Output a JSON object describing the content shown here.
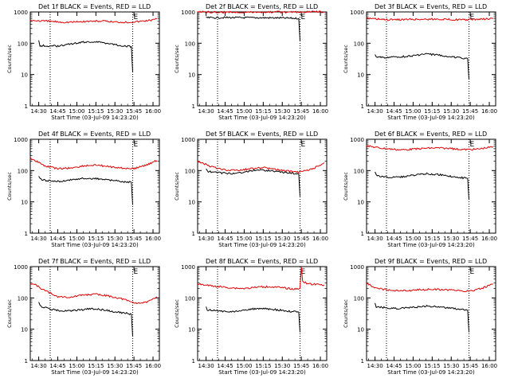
{
  "colors": {
    "events": "#000000",
    "lld": "#e00000",
    "axis": "#000000",
    "background": "#ffffff"
  },
  "chart_data": [
    {
      "type": "line",
      "title": "Det 1f BLACK = Events, RED = LLD",
      "xlabel": "Start Time (03-Jul-09 14:23:20)",
      "ylabel": "Counts/sec",
      "yscale": "log",
      "ylim": [
        1,
        1000
      ],
      "xlim": [
        "14:23:20",
        "16:05:00"
      ],
      "x_ticks": [
        "14:30",
        "14:45",
        "15:00",
        "15:15",
        "15:30",
        "15:45",
        "16:00"
      ],
      "y_ticks": [
        "1",
        "10",
        "100",
        "1000"
      ],
      "markers": [
        {
          "time": "14:39",
          "label": ""
        },
        {
          "time": "15:44",
          "label": "E"
        }
      ],
      "series": [
        {
          "color": "#000000",
          "x": [
            "14:30",
            "14:31",
            "14:33",
            "14:38",
            "14:45",
            "14:55",
            "15:05",
            "15:15",
            "15:25",
            "15:35",
            "15:43",
            "15:44"
          ],
          "values": [
            120,
            80,
            85,
            80,
            82,
            95,
            108,
            112,
            100,
            84,
            78,
            12
          ]
        },
        {
          "color": "#e00000",
          "x": [
            "14:23",
            "14:30",
            "14:40",
            "14:50",
            "15:00",
            "15:10",
            "15:20",
            "15:30",
            "15:40",
            "15:50",
            "16:00",
            "16:03"
          ],
          "values": [
            540,
            520,
            500,
            470,
            480,
            505,
            510,
            480,
            470,
            500,
            560,
            600
          ]
        }
      ]
    },
    {
      "type": "line",
      "title": "Det 2f BLACK = Events, RED = LLD",
      "xlabel": "Start Time (03-Jul-09 14:23:20)",
      "ylabel": "Counts/sec",
      "yscale": "log",
      "ylim": [
        1,
        1000
      ],
      "xlim": [
        "14:23:20",
        "16:05:00"
      ],
      "x_ticks": [
        "14:30",
        "14:45",
        "15:00",
        "15:15",
        "15:30",
        "15:45",
        "16:00"
      ],
      "y_ticks": [
        "1",
        "10",
        "100",
        "1000"
      ],
      "markers": [
        {
          "time": "14:39",
          "label": ""
        },
        {
          "time": "15:44",
          "label": "E"
        }
      ],
      "series": [
        {
          "color": "#000000",
          "x": [
            "14:30",
            "14:31",
            "14:45",
            "15:00",
            "15:15",
            "15:30",
            "15:43",
            "15:44"
          ],
          "values": [
            700,
            650,
            660,
            655,
            650,
            640,
            620,
            120
          ]
        },
        {
          "color": "#e00000",
          "x": [
            "14:23",
            "14:40",
            "15:00",
            "15:20",
            "15:40",
            "16:03"
          ],
          "values": [
            1000,
            980,
            990,
            1000,
            980,
            1020
          ]
        }
      ]
    },
    {
      "type": "line",
      "title": "Det 3f BLACK = Events, RED = LLD",
      "xlabel": "Start Time (03-Jul-09 14:23:20)",
      "ylabel": "Counts/sec",
      "yscale": "log",
      "ylim": [
        1,
        1000
      ],
      "xlim": [
        "14:23:20",
        "16:05:00"
      ],
      "x_ticks": [
        "14:30",
        "14:45",
        "15:00",
        "15:15",
        "15:30",
        "15:45",
        "16:00"
      ],
      "y_ticks": [
        "1",
        "10",
        "100",
        "1000"
      ],
      "markers": [
        {
          "time": "14:39",
          "label": ""
        },
        {
          "time": "15:44",
          "label": "E"
        }
      ],
      "series": [
        {
          "color": "#000000",
          "x": [
            "14:30",
            "14:31",
            "14:40",
            "14:50",
            "15:00",
            "15:10",
            "15:20",
            "15:30",
            "15:40",
            "15:43",
            "15:44"
          ],
          "values": [
            45,
            36,
            35,
            37,
            40,
            45,
            42,
            37,
            33,
            32,
            7
          ]
        },
        {
          "color": "#e00000",
          "x": [
            "14:23",
            "14:40",
            "15:00",
            "15:20",
            "15:40",
            "16:03"
          ],
          "values": [
            620,
            560,
            580,
            590,
            560,
            610
          ]
        }
      ]
    },
    {
      "type": "line",
      "title": "Det 4f BLACK = Events, RED = LLD",
      "xlabel": "Start Time (03-Jul-09 14:23:20)",
      "ylabel": "Counts/sec",
      "yscale": "log",
      "ylim": [
        1,
        1000
      ],
      "xlim": [
        "14:23:20",
        "16:05:00"
      ],
      "x_ticks": [
        "14:30",
        "14:45",
        "15:00",
        "15:15",
        "15:30",
        "15:45",
        "16:00"
      ],
      "y_ticks": [
        "1",
        "10",
        "100",
        "1000"
      ],
      "markers": [
        {
          "time": "14:39",
          "label": ""
        },
        {
          "time": "15:44",
          "label": "E"
        }
      ],
      "series": [
        {
          "color": "#000000",
          "x": [
            "14:30",
            "14:31",
            "14:35",
            "14:45",
            "14:55",
            "15:05",
            "15:15",
            "15:25",
            "15:35",
            "15:43",
            "15:44"
          ],
          "values": [
            70,
            55,
            48,
            45,
            50,
            57,
            55,
            50,
            45,
            42,
            8
          ]
        },
        {
          "color": "#e00000",
          "x": [
            "14:23",
            "14:28",
            "14:35",
            "14:45",
            "14:55",
            "15:05",
            "15:15",
            "15:25",
            "15:35",
            "15:45",
            "15:55",
            "16:03"
          ],
          "values": [
            250,
            200,
            140,
            115,
            120,
            140,
            150,
            135,
            120,
            115,
            150,
            210
          ]
        }
      ]
    },
    {
      "type": "line",
      "title": "Det 5f BLACK = Events, RED = LLD",
      "xlabel": "Start Time (03-Jul-09 14:23:20)",
      "ylabel": "Counts/sec",
      "yscale": "log",
      "ylim": [
        1,
        1000
      ],
      "xlim": [
        "14:23:20",
        "16:05:00"
      ],
      "x_ticks": [
        "14:30",
        "14:45",
        "15:00",
        "15:15",
        "15:30",
        "15:45",
        "16:00"
      ],
      "y_ticks": [
        "1",
        "10",
        "100",
        "1000"
      ],
      "markers": [
        {
          "time": "14:39",
          "label": ""
        },
        {
          "time": "15:44",
          "label": "E"
        }
      ],
      "series": [
        {
          "color": "#000000",
          "x": [
            "14:30",
            "14:31",
            "14:40",
            "14:50",
            "15:00",
            "15:10",
            "15:20",
            "15:30",
            "15:40",
            "15:43",
            "15:44"
          ],
          "values": [
            110,
            95,
            85,
            80,
            90,
            105,
            100,
            88,
            80,
            78,
            15
          ]
        },
        {
          "color": "#e00000",
          "x": [
            "14:23",
            "14:28",
            "14:35",
            "14:45",
            "14:55",
            "15:05",
            "15:15",
            "15:25",
            "15:35",
            "15:45",
            "15:55",
            "16:03"
          ],
          "values": [
            190,
            170,
            130,
            105,
            100,
            115,
            125,
            110,
            95,
            90,
            120,
            180
          ]
        }
      ]
    },
    {
      "type": "line",
      "title": "Det 6f BLACK = Events, RED = LLD",
      "xlabel": "Start Time (03-Jul-09 14:23:20)",
      "ylabel": "Counts/sec",
      "yscale": "log",
      "ylim": [
        1,
        1000
      ],
      "xlim": [
        "14:23:20",
        "16:05:00"
      ],
      "x_ticks": [
        "14:30",
        "14:45",
        "15:00",
        "15:15",
        "15:30",
        "15:45",
        "16:00"
      ],
      "y_ticks": [
        "1",
        "10",
        "100",
        "1000"
      ],
      "markers": [
        {
          "time": "14:39",
          "label": ""
        },
        {
          "time": "15:44",
          "label": "E"
        }
      ],
      "series": [
        {
          "color": "#000000",
          "x": [
            "14:30",
            "14:31",
            "14:40",
            "14:50",
            "15:00",
            "15:10",
            "15:20",
            "15:30",
            "15:40",
            "15:43",
            "15:44"
          ],
          "values": [
            90,
            70,
            60,
            62,
            70,
            80,
            75,
            65,
            58,
            55,
            12
          ]
        },
        {
          "color": "#e00000",
          "x": [
            "14:23",
            "14:35",
            "14:50",
            "15:00",
            "15:10",
            "15:20",
            "15:30",
            "15:40",
            "15:50",
            "16:03"
          ],
          "values": [
            620,
            520,
            460,
            480,
            520,
            530,
            500,
            470,
            480,
            580
          ]
        }
      ]
    },
    {
      "type": "line",
      "title": "Det 7f BLACK = Events, RED = LLD",
      "xlabel": "Start Time (03-Jul-09 14:23:20)",
      "ylabel": "Counts/sec",
      "yscale": "log",
      "ylim": [
        1,
        1000
      ],
      "xlim": [
        "14:23:20",
        "16:05:00"
      ],
      "x_ticks": [
        "14:30",
        "14:45",
        "15:00",
        "15:15",
        "15:30",
        "15:45",
        "16:00"
      ],
      "y_ticks": [
        "1",
        "10",
        "100",
        "1000"
      ],
      "markers": [
        {
          "time": "14:39",
          "label": ""
        },
        {
          "time": "15:44",
          "label": "E"
        }
      ],
      "series": [
        {
          "color": "#000000",
          "x": [
            "14:30",
            "14:31",
            "14:38",
            "14:48",
            "15:00",
            "15:10",
            "15:20",
            "15:30",
            "15:40",
            "15:43",
            "15:44"
          ],
          "values": [
            75,
            55,
            45,
            38,
            40,
            45,
            42,
            36,
            32,
            30,
            6
          ]
        },
        {
          "color": "#e00000",
          "x": [
            "14:23",
            "14:28",
            "14:35",
            "14:45",
            "14:55",
            "15:05",
            "15:15",
            "15:25",
            "15:35",
            "15:45",
            "15:55",
            "16:03"
          ],
          "values": [
            300,
            250,
            170,
            110,
            105,
            125,
            130,
            115,
            95,
            70,
            70,
            110
          ]
        }
      ]
    },
    {
      "type": "line",
      "title": "Det 8f BLACK = Events, RED = LLD",
      "xlabel": "Start Time (03-Jul-09 14:23:20)",
      "ylabel": "Counts/sec",
      "yscale": "log",
      "ylim": [
        1,
        1000
      ],
      "xlim": [
        "14:23:20",
        "16:05:00"
      ],
      "x_ticks": [
        "14:30",
        "14:45",
        "15:00",
        "15:15",
        "15:30",
        "15:45",
        "16:00"
      ],
      "y_ticks": [
        "1",
        "10",
        "100",
        "1000"
      ],
      "markers": [
        {
          "time": "14:39",
          "label": ""
        },
        {
          "time": "15:44",
          "label": "E"
        }
      ],
      "series": [
        {
          "color": "#000000",
          "x": [
            "14:30",
            "14:31",
            "14:40",
            "14:50",
            "15:00",
            "15:10",
            "15:20",
            "15:30",
            "15:40",
            "15:43",
            "15:44"
          ],
          "values": [
            55,
            42,
            38,
            36,
            40,
            46,
            44,
            40,
            36,
            35,
            8
          ]
        },
        {
          "color": "#e00000",
          "x": [
            "14:23",
            "14:35",
            "14:50",
            "15:00",
            "15:10",
            "15:20",
            "15:30",
            "15:40",
            "15:44",
            "15:45",
            "15:46",
            "15:50",
            "16:03"
          ],
          "values": [
            280,
            240,
            210,
            200,
            220,
            230,
            210,
            190,
            200,
            1000,
            350,
            280,
            260
          ]
        }
      ]
    },
    {
      "type": "line",
      "title": "Det 9f BLACK = Events, RED = LLD",
      "xlabel": "Start Time (03-Jul-09 14:23:20)",
      "ylabel": "Counts/sec",
      "yscale": "log",
      "ylim": [
        1,
        1000
      ],
      "xlim": [
        "14:23:20",
        "16:05:00"
      ],
      "x_ticks": [
        "14:30",
        "14:45",
        "15:00",
        "15:15",
        "15:30",
        "15:45",
        "16:00"
      ],
      "y_ticks": [
        "1",
        "10",
        "100",
        "1000"
      ],
      "markers": [
        {
          "time": "14:39",
          "label": ""
        },
        {
          "time": "15:44",
          "label": "E"
        }
      ],
      "series": [
        {
          "color": "#000000",
          "x": [
            "14:30",
            "14:31",
            "14:40",
            "14:50",
            "15:00",
            "15:10",
            "15:20",
            "15:30",
            "15:40",
            "15:43",
            "15:44"
          ],
          "values": [
            65,
            52,
            48,
            46,
            50,
            55,
            52,
            46,
            42,
            40,
            8
          ]
        },
        {
          "color": "#e00000",
          "x": [
            "14:23",
            "14:28",
            "14:35",
            "14:45",
            "14:55",
            "15:05",
            "15:15",
            "15:25",
            "15:35",
            "15:45",
            "15:55",
            "16:03"
          ],
          "values": [
            300,
            230,
            190,
            175,
            170,
            180,
            190,
            180,
            170,
            165,
            210,
            280
          ]
        }
      ]
    }
  ]
}
